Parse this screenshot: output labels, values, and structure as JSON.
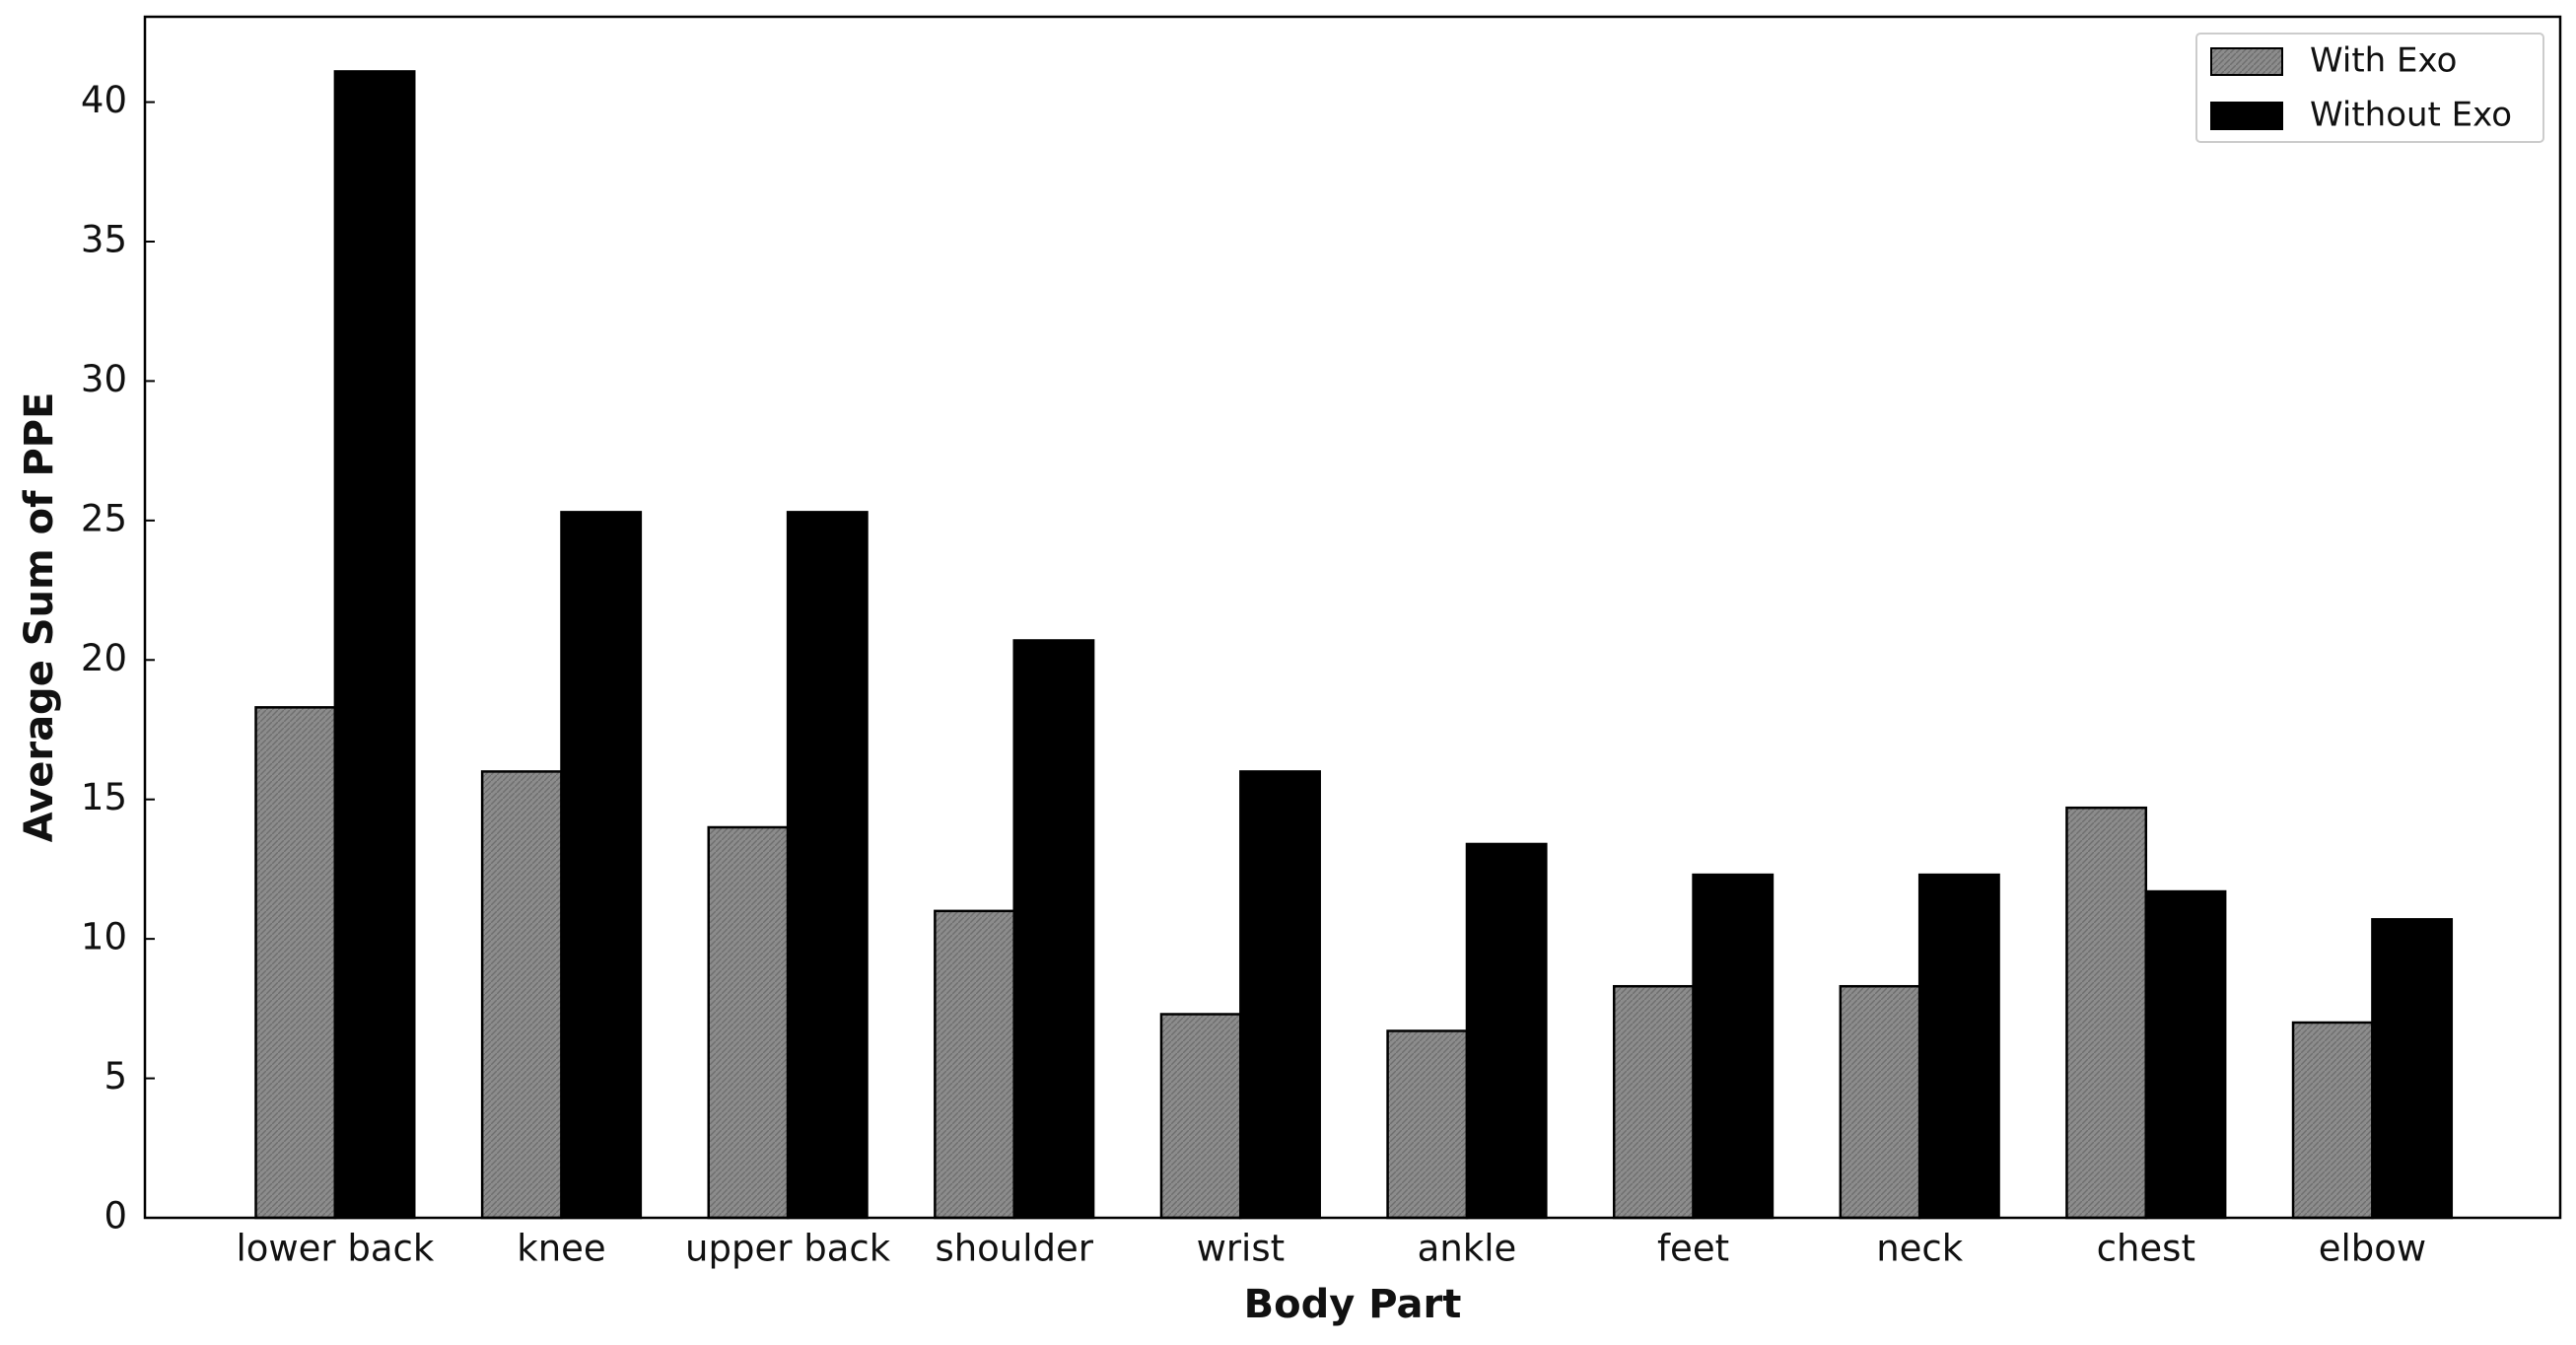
{
  "chart_data": {
    "type": "bar",
    "categories": [
      "lower back",
      "knee",
      "upper back",
      "shoulder",
      "wrist",
      "ankle",
      "feet",
      "neck",
      "chest",
      "elbow"
    ],
    "series": [
      {
        "name": "With Exo",
        "color": "#8c8c8c",
        "values": [
          18.3,
          16.0,
          14.0,
          11.0,
          7.3,
          6.7,
          8.3,
          8.3,
          14.7,
          7.0
        ]
      },
      {
        "name": "Without Exo",
        "color": "#000000",
        "values": [
          41.1,
          25.3,
          25.3,
          20.7,
          16.0,
          13.4,
          12.3,
          12.3,
          11.7,
          10.7
        ]
      }
    ],
    "x_label": "Body Part",
    "y_label": "Average Sum of PPE",
    "ylim": [
      0,
      43.06
    ],
    "yticks": [
      0,
      5,
      10,
      15,
      20,
      25,
      30,
      35,
      40
    ],
    "legend": "upper right"
  }
}
